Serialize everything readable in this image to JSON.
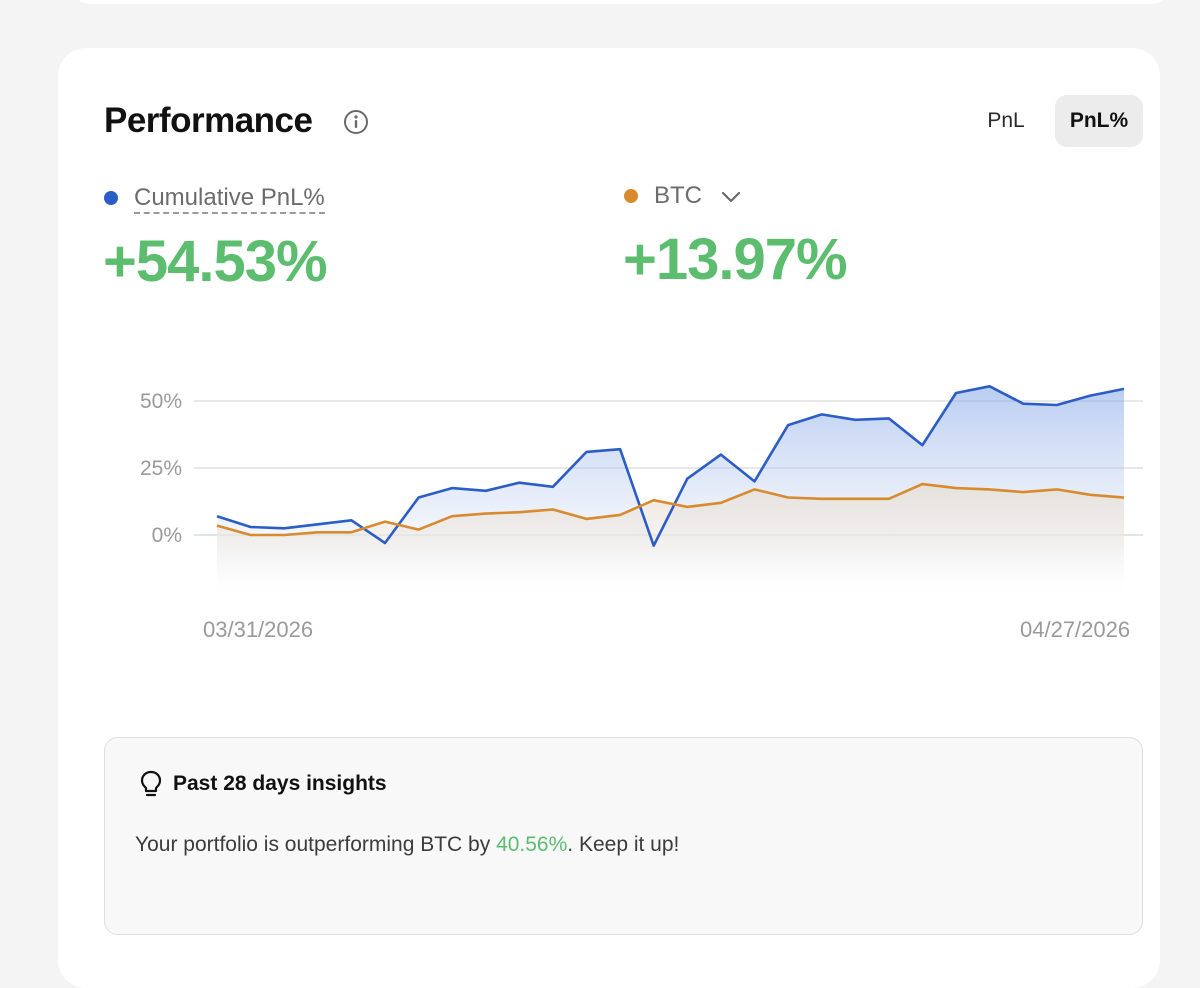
{
  "header": {
    "title": "Performance",
    "toggle_options": [
      "PnL",
      "PnL%"
    ],
    "selected_toggle": "PnL%"
  },
  "metrics": [
    {
      "label": "Cumulative PnL%",
      "value": "+54.53%",
      "color": "#2c5cc5"
    },
    {
      "label": "BTC",
      "value": "+13.97%",
      "color": "#d88a2e"
    }
  ],
  "chart_data": {
    "type": "area",
    "y_ticks": [
      "50%",
      "25%",
      "0%"
    ],
    "ylim": [
      -25,
      60
    ],
    "x_start_label": "03/31/2026",
    "x_end_label": "04/27/2026",
    "series": [
      {
        "name": "Cumulative PnL%",
        "color": "#2c5cc5",
        "values": [
          7,
          3,
          2.5,
          4,
          5.5,
          -3,
          14,
          17.5,
          16.5,
          19.5,
          18,
          31,
          32,
          -4,
          21,
          30,
          20,
          41,
          45,
          43,
          43.5,
          33.5,
          53,
          55.5,
          49,
          48.5,
          52,
          54.53
        ]
      },
      {
        "name": "BTC",
        "color": "#d88a2e",
        "values": [
          3.5,
          0,
          0,
          1,
          1,
          5,
          2,
          7,
          8,
          8.5,
          9.5,
          6,
          7.5,
          13,
          10.5,
          12,
          17,
          14,
          13.5,
          13.5,
          13.5,
          19,
          17.5,
          17,
          16,
          17,
          15,
          13.97
        ]
      }
    ]
  },
  "insights": {
    "title": "Past 28 days insights",
    "text_before": "Your portfolio is outperforming BTC by ",
    "highlight": "40.56%",
    "text_after": ". Keep it up!"
  }
}
